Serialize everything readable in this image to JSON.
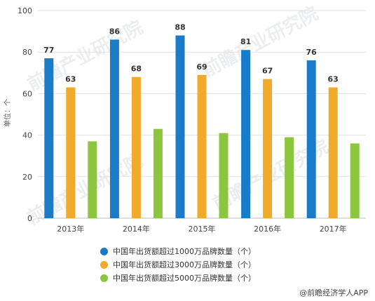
{
  "chart_data": {
    "type": "bar",
    "categories": [
      "2013年",
      "2014年",
      "2015年",
      "2016年",
      "2017年"
    ],
    "series": [
      {
        "name": "中国年出货额超过1000万品牌数量（个）",
        "values": [
          77,
          86,
          88,
          81,
          76
        ],
        "color": "#1a7bc9",
        "labeled": true
      },
      {
        "name": "中国年出货额超过3000万品牌数量（个）",
        "values": [
          63,
          68,
          69,
          67,
          63
        ],
        "color": "#f0aa2c",
        "labeled": true
      },
      {
        "name": "中国年出货额超过5000万品牌数量（个）",
        "values": [
          37,
          43,
          41,
          39,
          36
        ],
        "color": "#8cc63f",
        "labeled": false
      }
    ],
    "ylabel": "单位：个",
    "ylim": [
      0,
      100
    ],
    "yticks": [
      0,
      20,
      40,
      60,
      80,
      100
    ],
    "grid": true,
    "legend_position": "bottom"
  },
  "watermark": "前瞻产业研究院",
  "credit": "@前瞻经济学人APP"
}
